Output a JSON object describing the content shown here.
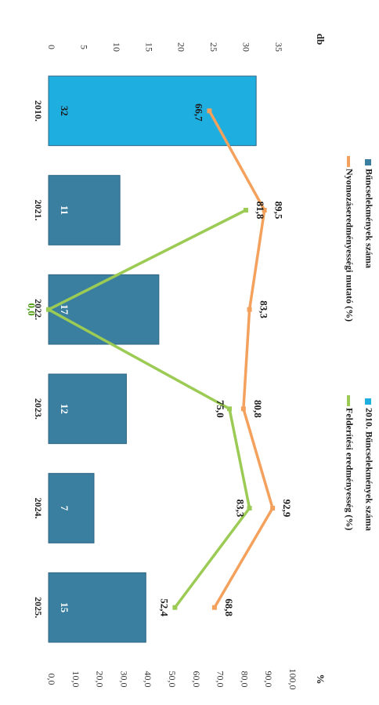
{
  "chart_data": {
    "type": "bar",
    "orientation": "rotated-90-clockwise",
    "categories": [
      "2010.",
      "2021.",
      "2022.",
      "2023.",
      "2024.",
      "2025."
    ],
    "series": [
      {
        "name": "Bűncselekmények száma",
        "kind": "bar",
        "axis": "left",
        "values": [
          32,
          11,
          17,
          12,
          7,
          15
        ],
        "color": "#3a7fa0"
      },
      {
        "name": "2010. Bűncselekmények száma",
        "kind": "bar-highlight",
        "axis": "left",
        "index": 0,
        "color": "#1faee0"
      },
      {
        "name": "Nyomozáseredményességi mutató (%)",
        "kind": "line",
        "axis": "right",
        "values": [
          66.7,
          89.5,
          83.3,
          80.8,
          92.9,
          68.8
        ],
        "labels": [
          "66,7",
          "89,5",
          "83,3",
          "80,8",
          "92,9",
          "68,8"
        ],
        "color": "#f3a15c"
      },
      {
        "name": "Felderítési eredményesség (%)",
        "kind": "line",
        "axis": "right",
        "values": [
          null,
          81.8,
          0.0,
          75.0,
          83.3,
          52.4
        ],
        "labels": [
          "",
          "81,8",
          "0,0",
          "75,0",
          "83,3",
          "52,4"
        ],
        "color": "#9bcb54"
      }
    ],
    "left_axis": {
      "unit": "db",
      "min": 0,
      "max": 35,
      "ticks": [
        "0",
        "5",
        "10",
        "15",
        "20",
        "25",
        "30",
        "35"
      ]
    },
    "right_axis": {
      "unit": "%",
      "min": 0,
      "max": 100,
      "ticks": [
        "0,0",
        "10,0",
        "20,0",
        "30,0",
        "40,0",
        "50,0",
        "60,0",
        "70,0",
        "80,0",
        "90,0",
        "100,0"
      ]
    },
    "grid": false,
    "legend_position": "right"
  }
}
